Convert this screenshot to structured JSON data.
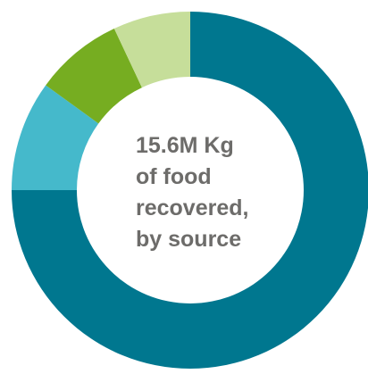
{
  "chart_data": {
    "type": "pie",
    "variant": "donut",
    "title_lines": [
      "15.6M Kg",
      "of food",
      "recovered,",
      "by source"
    ],
    "series": [
      {
        "value": 0.75,
        "color": "#00778f"
      },
      {
        "value": 0.1,
        "color": "#45b9cb"
      },
      {
        "value": 0.08,
        "color": "#76ad21"
      },
      {
        "value": 0.07,
        "color": "#c6de9a"
      }
    ],
    "title_color": "#6d6c6a"
  }
}
